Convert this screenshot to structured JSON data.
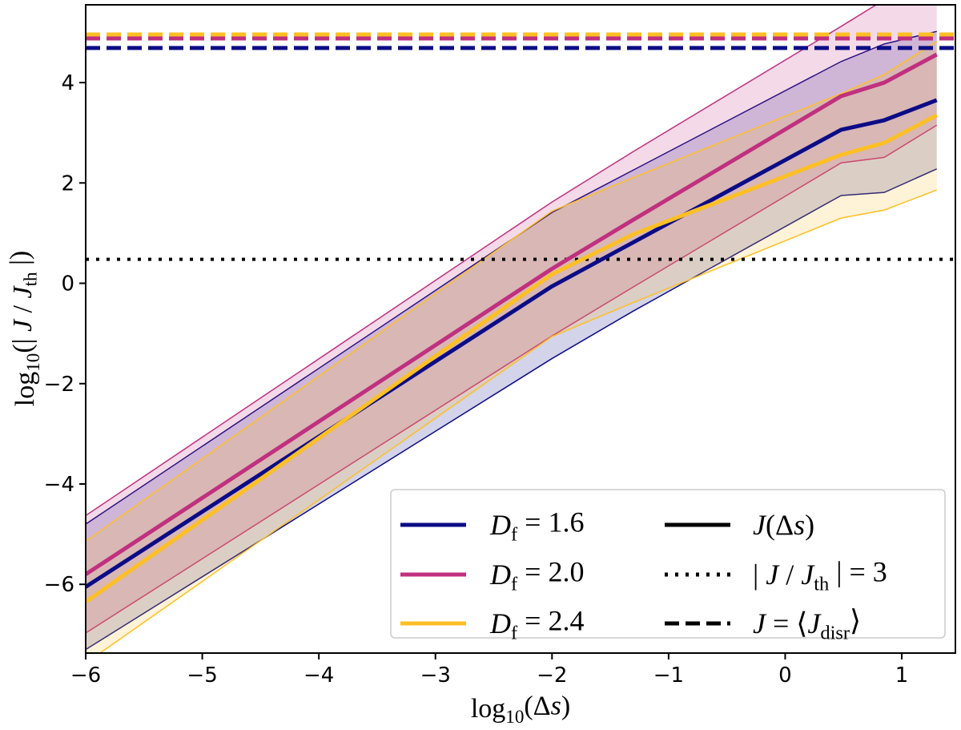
{
  "chart_data": {
    "type": "line",
    "xlabel": [
      {
        "t": "log"
      },
      {
        "t": "10",
        "sub": true
      },
      {
        "t": "(Δ"
      },
      {
        "t": "s",
        "it": true
      },
      {
        "t": ")"
      }
    ],
    "ylabel": [
      {
        "t": "log"
      },
      {
        "t": "10",
        "sub": true
      },
      {
        "t": "(| "
      },
      {
        "t": "J",
        "it": true
      },
      {
        "t": " / "
      },
      {
        "t": "J",
        "it": true
      },
      {
        "t": "th",
        "sub": true
      },
      {
        "t": " |)"
      }
    ],
    "xlim": [
      -6,
      1.46
    ],
    "ylim": [
      -7.37,
      5.55
    ],
    "xticks": [
      -6,
      -5,
      -4,
      -3,
      -2,
      -1,
      0,
      1
    ],
    "yticks": [
      -6,
      -4,
      -2,
      0,
      2,
      4
    ],
    "grid": false,
    "legend_placement": "lower-right",
    "x": [
      -6,
      -2,
      -1.3,
      0.48,
      0.85,
      1.3
    ],
    "series": [
      {
        "name": "D_f = 1.6",
        "color": "#0c0c86",
        "mean": [
          -6.05,
          -0.06,
          0.82,
          3.06,
          3.25,
          3.65
        ],
        "upper": [
          -4.8,
          1.41,
          2.26,
          4.42,
          4.77,
          5.02
        ],
        "lower": [
          -7.3,
          -1.5,
          -0.55,
          1.75,
          1.81,
          2.28
        ],
        "disruption_level": 4.69
      },
      {
        "name": "D_f = 2.0",
        "color": "#c0307f",
        "mean": [
          -5.8,
          0.29,
          1.27,
          3.73,
          4.0,
          4.56
        ],
        "upper": [
          -4.63,
          1.62,
          2.63,
          5.12,
          5.65,
          6.2
        ],
        "lower": [
          -6.97,
          -1.05,
          -0.07,
          2.4,
          2.51,
          3.15
        ],
        "disruption_level": 4.88
      },
      {
        "name": "D_f = 2.4",
        "color": "#fdbf24",
        "mean": [
          -6.35,
          0.18,
          0.98,
          2.56,
          2.8,
          3.35
        ],
        "upper": [
          -5.14,
          1.44,
          2.11,
          3.78,
          4.16,
          4.82
        ],
        "lower": [
          -7.57,
          -1.06,
          -0.38,
          1.3,
          1.46,
          1.86
        ],
        "disruption_level": 4.96
      }
    ],
    "threshold_level": 0.477,
    "legend": {
      "series": [
        [
          {
            "t": "D",
            "it": true
          },
          {
            "t": "f",
            "sub": true
          },
          {
            "t": " = 1.6"
          }
        ],
        [
          {
            "t": "D",
            "it": true
          },
          {
            "t": "f",
            "sub": true
          },
          {
            "t": " = 2.0"
          }
        ],
        [
          {
            "t": "D",
            "it": true
          },
          {
            "t": "f",
            "sub": true
          },
          {
            "t": " = 2.4"
          }
        ]
      ],
      "styles": [
        {
          "dash": "solid",
          "label": [
            {
              "t": "J",
              "it": true
            },
            {
              "t": "(Δ"
            },
            {
              "t": "s",
              "it": true
            },
            {
              "t": ")"
            }
          ]
        },
        {
          "dash": "dotted",
          "label": [
            {
              "t": "| "
            },
            {
              "t": "J",
              "it": true
            },
            {
              "t": " / "
            },
            {
              "t": "J",
              "it": true
            },
            {
              "t": "th",
              "sub": true
            },
            {
              "t": " | = 3"
            }
          ]
        },
        {
          "dash": "dashed",
          "label": [
            {
              "t": "J",
              "it": true
            },
            {
              "t": " = ⟨"
            },
            {
              "t": "J",
              "it": true
            },
            {
              "t": "disr",
              "sub": true
            },
            {
              "t": "⟩"
            }
          ]
        }
      ]
    }
  }
}
